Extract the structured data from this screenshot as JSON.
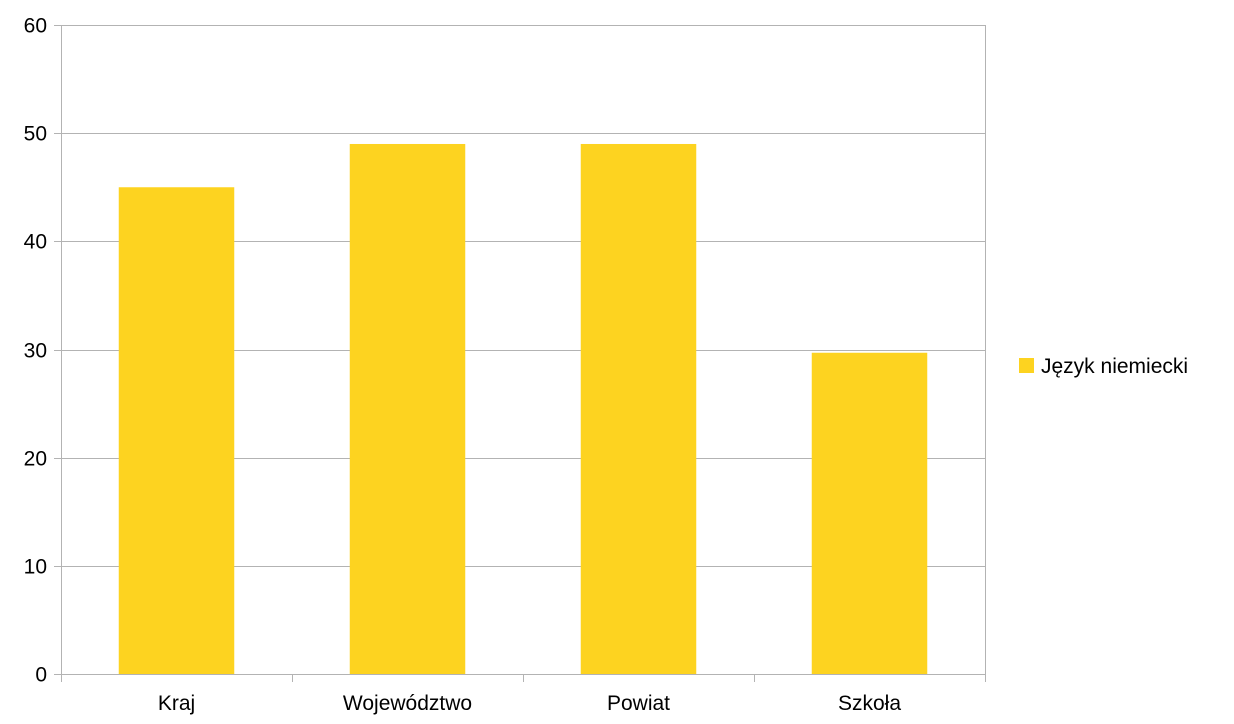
{
  "chart_data": {
    "type": "bar",
    "categories": [
      "Kraj",
      "Województwo",
      "Powiat",
      "Szkoła"
    ],
    "series": [
      {
        "name": "Język niemiecki",
        "values": [
          45,
          49,
          49,
          29.7
        ],
        "color": "#FDD320"
      }
    ],
    "ylim": [
      0,
      60
    ],
    "yticks": [
      0,
      10,
      20,
      30,
      40,
      50,
      60
    ],
    "grid": true,
    "legend_position": "right",
    "colors": {
      "gridline": "#b3b3b3",
      "axis": "#b3b3b3",
      "background": "#ffffff"
    }
  }
}
